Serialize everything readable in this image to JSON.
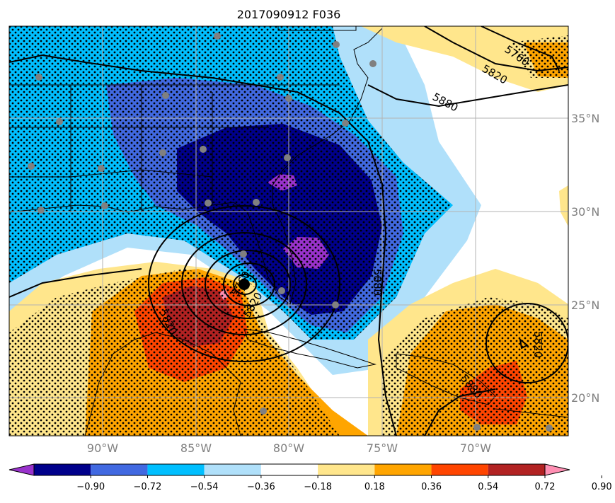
{
  "title": "2017090912 F036",
  "lon_ticks": [
    {
      "value": -90,
      "label": "90°W"
    },
    {
      "value": -85,
      "label": "85°W"
    },
    {
      "value": -80,
      "label": "80°W"
    },
    {
      "value": -75,
      "label": "75°W"
    },
    {
      "value": -70,
      "label": "70°W"
    }
  ],
  "lat_ticks": [
    {
      "value": 35,
      "label": "35°N"
    },
    {
      "value": 30,
      "label": "30°N"
    },
    {
      "value": 25,
      "label": "25°N"
    },
    {
      "value": 20,
      "label": "20°N"
    }
  ],
  "colorbar": {
    "colors": [
      "#9932cc",
      "#00008b",
      "#4169e1",
      "#00bfff",
      "#b0e0fa",
      "#ffffff",
      "#ffe68c",
      "#ffa500",
      "#ff4500",
      "#b22222",
      "#ff8fb3"
    ],
    "tick_labels": [
      "−0.90",
      "−0.72",
      "−0.54",
      "−0.36",
      "−0.18",
      "0.18",
      "0.36",
      "0.54",
      "0.72",
      "0.90"
    ],
    "extend": "both"
  },
  "contour_labels": [
    "5880",
    "5820",
    "5760",
    "5880",
    "5820",
    "5880",
    "5820",
    "5760",
    "5820"
  ],
  "storm_center_marker": "black-dot",
  "station_marker_color": "#808080"
}
